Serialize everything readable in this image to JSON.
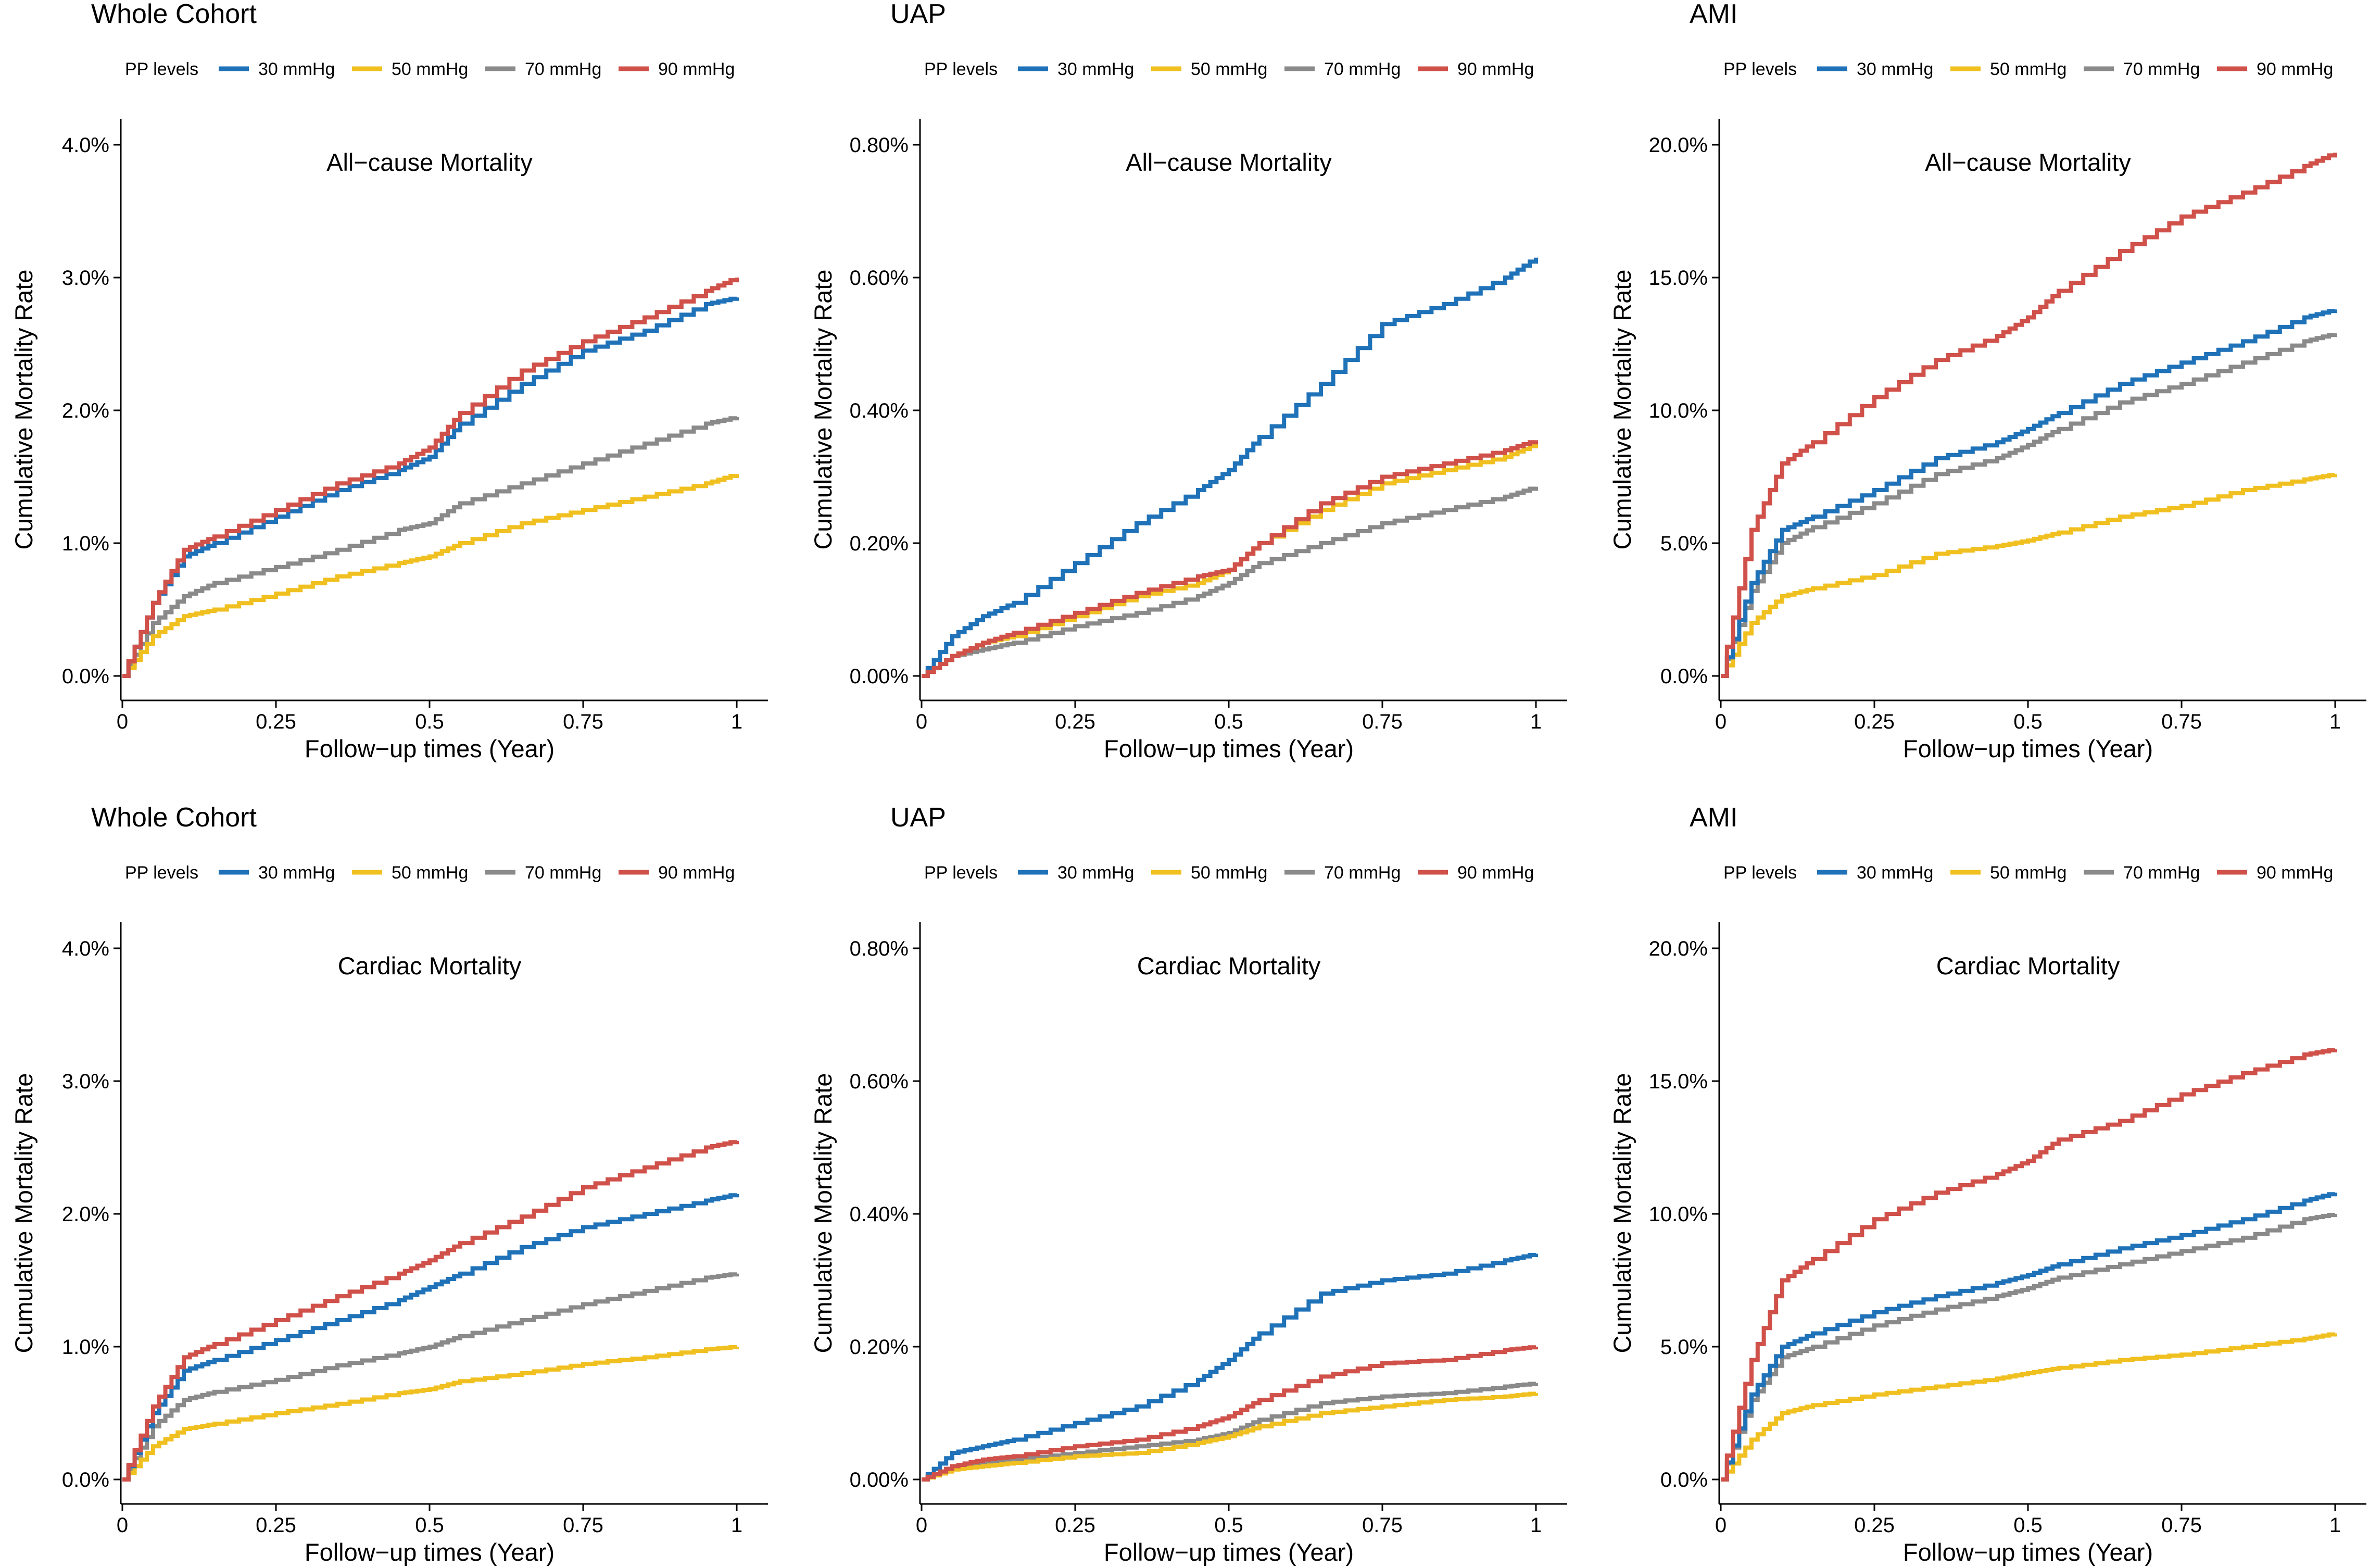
{
  "figure": {
    "description_free": true,
    "colors": {
      "30 mmHg": "#1f72b8",
      "50 mmHg": "#f0c020",
      "70 mmHg": "#8a8a8a",
      "90 mmHg": "#d0504a",
      "axis": "#000000"
    }
  },
  "chart_data": [
    {
      "type": "line",
      "step": true,
      "title": "Whole Cohort",
      "subtitle": "All−cause Mortality",
      "legend_title": "PP levels",
      "legend_position": "top",
      "xlabel": "Follow−up times (Year)",
      "ylabel": "Cumulative Mortality Rate",
      "xlim": [
        0,
        1
      ],
      "ylim": [
        0,
        4.0
      ],
      "x_ticks": [
        "0",
        "0.25",
        "0.5",
        "0.75",
        "1"
      ],
      "y_ticks": [
        0,
        1,
        2,
        3,
        4
      ],
      "y_tick_labels": [
        "0.0%",
        "1.0%",
        "2.0%",
        "3.0%",
        "4.0%"
      ],
      "x": [
        0,
        0.05,
        0.1,
        0.15,
        0.25,
        0.35,
        0.45,
        0.5,
        0.55,
        0.65,
        0.75,
        0.85,
        0.95,
        1.0
      ],
      "series": [
        {
          "name": "30 mmHg",
          "values": [
            0,
            0.55,
            0.9,
            1.0,
            1.2,
            1.4,
            1.55,
            1.65,
            1.9,
            2.2,
            2.45,
            2.6,
            2.8,
            2.85
          ]
        },
        {
          "name": "50 mmHg",
          "values": [
            0,
            0.3,
            0.45,
            0.5,
            0.62,
            0.75,
            0.85,
            0.9,
            1.0,
            1.15,
            1.25,
            1.35,
            1.45,
            1.52
          ]
        },
        {
          "name": "70 mmHg",
          "values": [
            0,
            0.4,
            0.6,
            0.7,
            0.82,
            0.95,
            1.1,
            1.15,
            1.3,
            1.45,
            1.6,
            1.75,
            1.9,
            1.95
          ]
        },
        {
          "name": "90 mmHg",
          "values": [
            0,
            0.55,
            0.95,
            1.05,
            1.25,
            1.45,
            1.6,
            1.72,
            1.98,
            2.3,
            2.52,
            2.7,
            2.9,
            3.0
          ]
        }
      ]
    },
    {
      "type": "line",
      "step": true,
      "title": "UAP",
      "subtitle": "All−cause Mortality",
      "legend_title": "PP levels",
      "legend_position": "top",
      "xlabel": "Follow−up times (Year)",
      "ylabel": "Cumulative Mortality Rate",
      "xlim": [
        0,
        1
      ],
      "ylim": [
        0,
        0.8
      ],
      "x_ticks": [
        "0",
        "0.25",
        "0.5",
        "0.75",
        "1"
      ],
      "y_ticks": [
        0,
        0.2,
        0.4,
        0.6,
        0.8
      ],
      "y_tick_labels": [
        "0.00%",
        "0.20%",
        "0.40%",
        "0.60%",
        "0.80%"
      ],
      "x": [
        0,
        0.05,
        0.1,
        0.15,
        0.25,
        0.35,
        0.45,
        0.5,
        0.55,
        0.65,
        0.75,
        0.85,
        0.95,
        1.0
      ],
      "series": [
        {
          "name": "30 mmHg",
          "values": [
            0,
            0.06,
            0.09,
            0.11,
            0.17,
            0.23,
            0.28,
            0.31,
            0.36,
            0.44,
            0.53,
            0.56,
            0.6,
            0.63
          ]
        },
        {
          "name": "50 mmHg",
          "values": [
            0,
            0.03,
            0.05,
            0.06,
            0.09,
            0.12,
            0.14,
            0.16,
            0.2,
            0.25,
            0.29,
            0.31,
            0.33,
            0.35
          ]
        },
        {
          "name": "70 mmHg",
          "values": [
            0,
            0.03,
            0.04,
            0.05,
            0.075,
            0.095,
            0.12,
            0.14,
            0.17,
            0.2,
            0.23,
            0.25,
            0.27,
            0.285
          ]
        },
        {
          "name": "90 mmHg",
          "values": [
            0,
            0.03,
            0.05,
            0.065,
            0.095,
            0.125,
            0.15,
            0.16,
            0.2,
            0.26,
            0.3,
            0.32,
            0.34,
            0.355
          ]
        }
      ]
    },
    {
      "type": "line",
      "step": true,
      "title": "AMI",
      "subtitle": "All−cause Mortality",
      "legend_title": "PP levels",
      "legend_position": "top",
      "xlabel": "Follow−up times (Year)",
      "ylabel": "Cumulative Mortality Rate",
      "xlim": [
        0,
        1
      ],
      "ylim": [
        0,
        20.0
      ],
      "x_ticks": [
        "0",
        "0.25",
        "0.5",
        "0.75",
        "1"
      ],
      "y_ticks": [
        0,
        5,
        10,
        15,
        20
      ],
      "y_tick_labels": [
        "0.0%",
        "5.0%",
        "10.0%",
        "15.0%",
        "20.0%"
      ],
      "x": [
        0,
        0.05,
        0.1,
        0.15,
        0.25,
        0.35,
        0.45,
        0.5,
        0.55,
        0.65,
        0.75,
        0.85,
        0.95,
        1.0
      ],
      "series": [
        {
          "name": "30 mmHg",
          "values": [
            0,
            3.5,
            5.5,
            6.0,
            7.0,
            8.2,
            8.8,
            9.3,
            9.9,
            11.0,
            11.8,
            12.6,
            13.5,
            13.8
          ]
        },
        {
          "name": "50 mmHg",
          "values": [
            0,
            2.0,
            3.0,
            3.3,
            3.8,
            4.6,
            4.9,
            5.1,
            5.4,
            6.0,
            6.4,
            7.0,
            7.4,
            7.6
          ]
        },
        {
          "name": "70 mmHg",
          "values": [
            0,
            3.2,
            5.0,
            5.6,
            6.5,
            7.6,
            8.2,
            8.7,
            9.3,
            10.3,
            11.0,
            11.8,
            12.6,
            12.9
          ]
        },
        {
          "name": "90 mmHg",
          "values": [
            0,
            5.5,
            8.0,
            8.8,
            10.5,
            11.9,
            12.8,
            13.5,
            14.5,
            16.0,
            17.3,
            18.2,
            19.2,
            19.7
          ]
        }
      ]
    },
    {
      "type": "line",
      "step": true,
      "title": "Whole Cohort",
      "subtitle": "Cardiac Mortality",
      "legend_title": "PP levels",
      "legend_position": "top",
      "xlabel": "Follow−up times (Year)",
      "ylabel": "Cumulative Mortality Rate",
      "xlim": [
        0,
        1
      ],
      "ylim": [
        0,
        4.0
      ],
      "x_ticks": [
        "0",
        "0.25",
        "0.5",
        "0.75",
        "1"
      ],
      "y_ticks": [
        0,
        1,
        2,
        3,
        4
      ],
      "y_tick_labels": [
        "0.0%",
        "1.0%",
        "2.0%",
        "3.0%",
        "4.0%"
      ],
      "x": [
        0,
        0.05,
        0.1,
        0.15,
        0.25,
        0.35,
        0.45,
        0.5,
        0.55,
        0.65,
        0.75,
        0.85,
        0.95,
        1.0
      ],
      "series": [
        {
          "name": "30 mmHg",
          "values": [
            0,
            0.5,
            0.82,
            0.9,
            1.05,
            1.2,
            1.35,
            1.45,
            1.55,
            1.75,
            1.9,
            2.0,
            2.1,
            2.15
          ]
        },
        {
          "name": "50 mmHg",
          "values": [
            0,
            0.25,
            0.38,
            0.42,
            0.5,
            0.57,
            0.65,
            0.68,
            0.74,
            0.8,
            0.87,
            0.92,
            0.98,
            1.0
          ]
        },
        {
          "name": "70 mmHg",
          "values": [
            0,
            0.4,
            0.6,
            0.66,
            0.75,
            0.86,
            0.95,
            1.0,
            1.08,
            1.2,
            1.32,
            1.42,
            1.52,
            1.55
          ]
        },
        {
          "name": "90 mmHg",
          "values": [
            0,
            0.55,
            0.92,
            1.02,
            1.2,
            1.38,
            1.55,
            1.65,
            1.78,
            1.98,
            2.2,
            2.35,
            2.5,
            2.55
          ]
        }
      ]
    },
    {
      "type": "line",
      "step": true,
      "title": "UAP",
      "subtitle": "Cardiac Mortality",
      "legend_title": "PP levels",
      "legend_position": "top",
      "xlabel": "Follow−up times (Year)",
      "ylabel": "Cumulative Mortality Rate",
      "xlim": [
        0,
        1
      ],
      "ylim": [
        0,
        0.8
      ],
      "x_ticks": [
        "0",
        "0.25",
        "0.5",
        "0.75",
        "1"
      ],
      "y_ticks": [
        0,
        0.2,
        0.4,
        0.6,
        0.8
      ],
      "y_tick_labels": [
        "0.00%",
        "0.20%",
        "0.40%",
        "0.60%",
        "0.80%"
      ],
      "x": [
        0,
        0.05,
        0.1,
        0.15,
        0.25,
        0.35,
        0.45,
        0.5,
        0.55,
        0.65,
        0.75,
        0.85,
        0.95,
        1.0
      ],
      "series": [
        {
          "name": "30 mmHg",
          "values": [
            0,
            0.04,
            0.05,
            0.06,
            0.085,
            0.11,
            0.15,
            0.18,
            0.22,
            0.28,
            0.3,
            0.31,
            0.33,
            0.34
          ]
        },
        {
          "name": "50 mmHg",
          "values": [
            0,
            0.015,
            0.02,
            0.025,
            0.035,
            0.04,
            0.055,
            0.065,
            0.08,
            0.1,
            0.11,
            0.12,
            0.125,
            0.13
          ]
        },
        {
          "name": "70 mmHg",
          "values": [
            0,
            0.02,
            0.025,
            0.03,
            0.04,
            0.05,
            0.06,
            0.07,
            0.09,
            0.115,
            0.125,
            0.13,
            0.14,
            0.145
          ]
        },
        {
          "name": "90 mmHg",
          "values": [
            0,
            0.02,
            0.03,
            0.035,
            0.05,
            0.06,
            0.08,
            0.095,
            0.12,
            0.155,
            0.175,
            0.18,
            0.195,
            0.2
          ]
        }
      ]
    },
    {
      "type": "line",
      "step": true,
      "title": "AMI",
      "subtitle": "Cardiac Mortality",
      "legend_title": "PP levels",
      "legend_position": "top",
      "xlabel": "Follow−up times (Year)",
      "ylabel": "Cumulative Mortality Rate",
      "xlim": [
        0,
        1
      ],
      "ylim": [
        0,
        20.0
      ],
      "x_ticks": [
        "0",
        "0.25",
        "0.5",
        "0.75",
        "1"
      ],
      "y_ticks": [
        0,
        5,
        10,
        15,
        20
      ],
      "y_tick_labels": [
        "0.0%",
        "5.0%",
        "10.0%",
        "15.0%",
        "20.0%"
      ],
      "x": [
        0,
        0.05,
        0.1,
        0.15,
        0.25,
        0.35,
        0.45,
        0.5,
        0.55,
        0.65,
        0.75,
        0.85,
        0.95,
        1.0
      ],
      "series": [
        {
          "name": "30 mmHg",
          "values": [
            0,
            3.2,
            5.0,
            5.5,
            6.3,
            6.9,
            7.4,
            7.7,
            8.1,
            8.7,
            9.2,
            9.8,
            10.5,
            10.8
          ]
        },
        {
          "name": "50 mmHg",
          "values": [
            0,
            1.5,
            2.5,
            2.8,
            3.2,
            3.5,
            3.8,
            4.0,
            4.2,
            4.5,
            4.7,
            5.0,
            5.3,
            5.5
          ]
        },
        {
          "name": "70 mmHg",
          "values": [
            0,
            3.0,
            4.6,
            5.0,
            5.8,
            6.4,
            6.9,
            7.2,
            7.6,
            8.1,
            8.6,
            9.1,
            9.8,
            10.0
          ]
        },
        {
          "name": "90 mmHg",
          "values": [
            0,
            4.5,
            7.5,
            8.3,
            9.8,
            10.8,
            11.5,
            12.0,
            12.8,
            13.5,
            14.5,
            15.3,
            16.0,
            16.2
          ]
        }
      ]
    }
  ]
}
